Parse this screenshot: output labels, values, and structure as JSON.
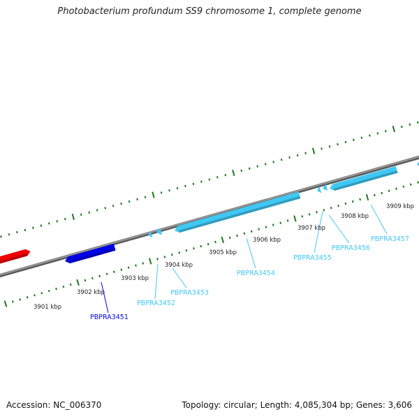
{
  "title": "Photobacterium profundum SS9 chromosome 1, complete genome",
  "footer": {
    "accession": "Accession: NC_006370",
    "summary": "Topology: circular; Length: 4,085,304 bp; Genes: 3,606"
  },
  "colors": {
    "backbone": "#808080",
    "tick": "#1a7a1a",
    "gene_cyan": "#40c8f4",
    "gene_blue": "#0000e6",
    "gene_red": "#ee0000"
  },
  "scale_labels": [
    "3901 kbp",
    "3902 kbp",
    "3903 kbp",
    "3904 kbp",
    "3905 kbp",
    "3906 kbp",
    "3907 kbp",
    "3908 kbp",
    "3909 kbp"
  ],
  "genes": [
    {
      "label": "",
      "color": "red"
    },
    {
      "label": "PBPRA3451",
      "color": "blue"
    },
    {
      "label": "PBPRA3452",
      "color": "cyan"
    },
    {
      "label": "PBPRA3453",
      "color": "cyan"
    },
    {
      "label": "PBPRA3454",
      "color": "cyan"
    },
    {
      "label": "PBPRA3455",
      "color": "cyan"
    },
    {
      "label": "PBPRA3456",
      "color": "cyan"
    },
    {
      "label": "PBPRA3457",
      "color": "cyan"
    },
    {
      "label": "",
      "color": "cyan"
    }
  ]
}
